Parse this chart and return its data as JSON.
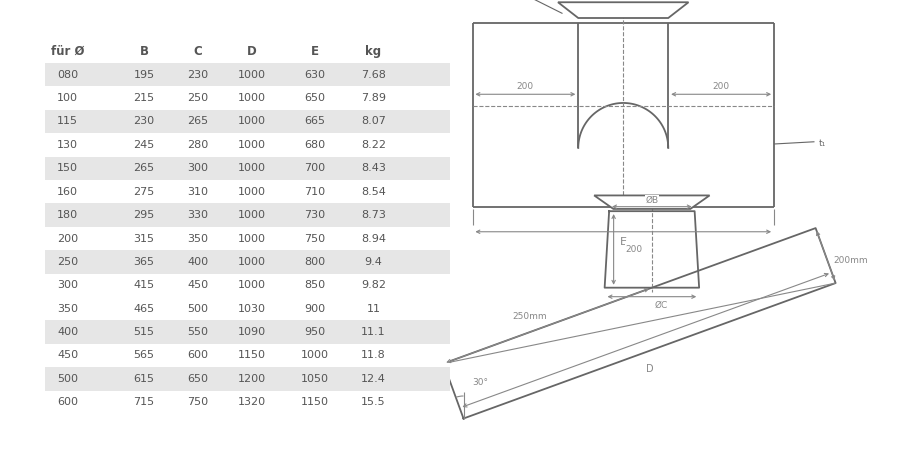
{
  "table_headers": [
    "für Ø",
    "B",
    "C",
    "D",
    "E",
    "kg"
  ],
  "table_data": [
    [
      "080",
      "195",
      "230",
      "1000",
      "630",
      "7.68"
    ],
    [
      "100",
      "215",
      "250",
      "1000",
      "650",
      "7.89"
    ],
    [
      "115",
      "230",
      "265",
      "1000",
      "665",
      "8.07"
    ],
    [
      "130",
      "245",
      "280",
      "1000",
      "680",
      "8.22"
    ],
    [
      "150",
      "265",
      "300",
      "1000",
      "700",
      "8.43"
    ],
    [
      "160",
      "275",
      "310",
      "1000",
      "710",
      "8.54"
    ],
    [
      "180",
      "295",
      "330",
      "1000",
      "730",
      "8.73"
    ],
    [
      "200",
      "315",
      "350",
      "1000",
      "750",
      "8.94"
    ],
    [
      "250",
      "365",
      "400",
      "1000",
      "800",
      "9.4"
    ],
    [
      "300",
      "415",
      "450",
      "1000",
      "850",
      "9.82"
    ],
    [
      "350",
      "465",
      "500",
      "1030",
      "900",
      "11"
    ],
    [
      "400",
      "515",
      "550",
      "1090",
      "950",
      "11.1"
    ],
    [
      "450",
      "565",
      "600",
      "1150",
      "1000",
      "11.8"
    ],
    [
      "500",
      "615",
      "650",
      "1200",
      "1050",
      "12.4"
    ],
    [
      "600",
      "715",
      "750",
      "1320",
      "1150",
      "15.5"
    ]
  ],
  "shaded_rows": [
    0,
    2,
    4,
    6,
    8,
    11,
    13
  ],
  "bg_color": "#ffffff",
  "row_shade_color": "#e6e6e6",
  "text_color": "#555555",
  "lc": "#666666",
  "dc": "#888888"
}
